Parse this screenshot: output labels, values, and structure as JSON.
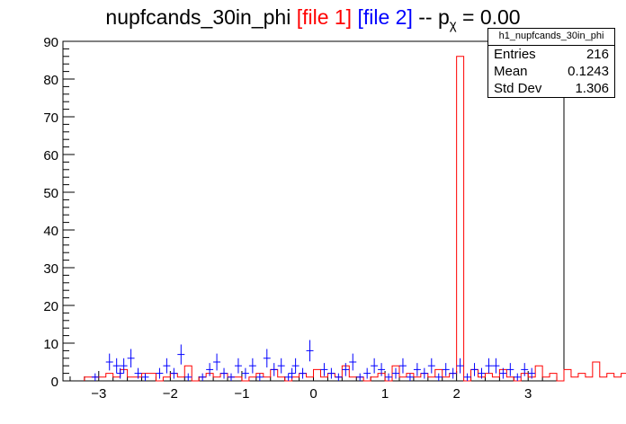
{
  "title": {
    "main": "nupfcands_30in_phi",
    "file1": "[file 1]",
    "file2": "[file 2]",
    "sep": "-- p",
    "sub": "χ",
    "rest": "= 0.00"
  },
  "stats": {
    "name": "h1_nupfcands_30in_phi",
    "entries_label": "Entries",
    "entries": "216",
    "mean_label": "Mean",
    "mean": "0.1243",
    "stddev_label": "Std Dev",
    "stddev": "1.306"
  },
  "colors": {
    "file1": "#ff0000",
    "file2": "#0000ff",
    "axis": "#000000"
  },
  "chart_data": {
    "type": "bar",
    "xlim": [
      -3.5,
      3.5
    ],
    "ylim": [
      0,
      90
    ],
    "xticks": [
      -3,
      -2,
      -1,
      0,
      1,
      2,
      3
    ],
    "yticks": [
      0,
      10,
      20,
      30,
      40,
      50,
      60,
      70,
      80,
      90
    ],
    "bin_width": 0.1,
    "bin_start": -3.2,
    "series": [
      {
        "name": "[file 1]",
        "style": "step",
        "values": [
          1,
          1,
          1,
          2,
          1,
          3,
          1,
          1,
          2,
          2,
          0,
          1,
          2,
          1,
          4,
          0,
          1,
          2,
          1,
          2,
          1,
          1,
          0,
          1,
          2,
          1,
          3,
          1,
          0,
          1,
          2,
          1,
          3,
          1,
          2,
          1,
          4,
          1,
          1,
          0,
          1,
          2,
          0,
          4,
          1,
          2,
          1,
          2,
          1,
          3,
          1,
          2,
          86,
          0,
          3,
          1,
          2,
          1,
          3,
          1,
          0,
          2,
          1,
          4,
          1,
          2,
          0,
          3,
          1,
          2,
          1,
          5,
          1,
          2,
          1,
          2,
          0,
          1,
          3,
          1,
          2,
          1,
          2,
          1,
          3,
          1,
          2,
          1,
          0,
          2,
          1,
          3,
          1,
          2,
          1,
          2,
          1,
          3,
          1,
          2,
          1,
          3,
          1,
          1,
          2,
          1,
          2,
          1,
          2,
          1,
          2,
          1,
          3,
          1,
          2,
          1,
          2,
          1,
          1,
          2,
          2,
          1,
          2,
          1
        ]
      },
      {
        "name": "[file 2]",
        "style": "errorbar",
        "x": [
          -3.05,
          -2.85,
          -2.75,
          -2.7,
          -2.65,
          -2.55,
          -2.45,
          -2.35,
          -2.15,
          -2.05,
          -1.95,
          -1.85,
          -1.75,
          -1.55,
          -1.45,
          -1.35,
          -1.25,
          -1.15,
          -1.05,
          -0.95,
          -0.85,
          -0.75,
          -0.65,
          -0.55,
          -0.45,
          -0.35,
          -0.3,
          -0.25,
          -0.15,
          -0.05,
          0.15,
          0.25,
          0.35,
          0.45,
          0.55,
          0.65,
          0.75,
          0.85,
          0.95,
          1.05,
          1.15,
          1.25,
          1.35,
          1.45,
          1.55,
          1.65,
          1.75,
          1.85,
          1.95,
          2.05,
          2.15,
          2.25,
          2.35,
          2.45,
          2.55,
          2.65,
          2.75,
          2.85,
          2.95,
          3.05
        ],
        "values": [
          1,
          5,
          4,
          2,
          4,
          6,
          2,
          1,
          2,
          4,
          2,
          7,
          1,
          1,
          3,
          5,
          2,
          1,
          4,
          2,
          4,
          1,
          6,
          3,
          4,
          1,
          2,
          4,
          2,
          8,
          3,
          2,
          1,
          3,
          5,
          1,
          2,
          4,
          3,
          1,
          2,
          4,
          1,
          3,
          2,
          4,
          1,
          3,
          2,
          4,
          1,
          3,
          2,
          4,
          4,
          2,
          3,
          1,
          3,
          2
        ]
      }
    ]
  }
}
